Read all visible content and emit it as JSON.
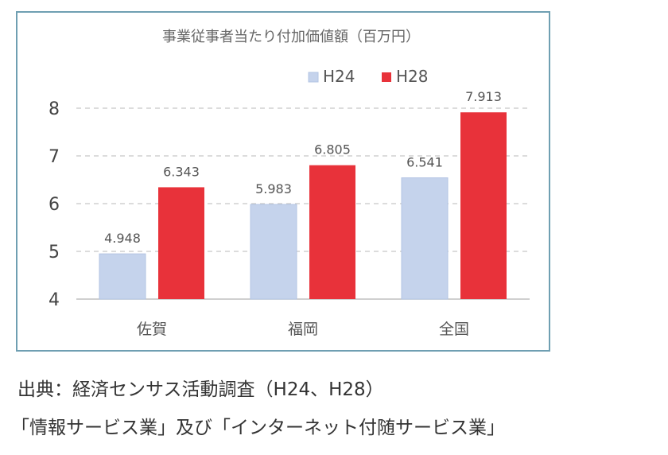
{
  "chart_data": {
    "type": "bar",
    "title": "事業従事者当たり付加価値額（百万円）",
    "categories": [
      "佐賀",
      "福岡",
      "全国"
    ],
    "series": [
      {
        "name": "H24",
        "values": [
          4.948,
          5.983,
          6.541
        ],
        "labels": [
          "4.948",
          "5.983",
          "6.541"
        ],
        "color": "#c5d3ec"
      },
      {
        "name": "H28",
        "values": [
          6.343,
          6.805,
          7.913
        ],
        "labels": [
          "6.343",
          "6.805",
          "7.913"
        ],
        "color": "#e8323a"
      }
    ],
    "ylim": [
      4,
      8
    ],
    "yticks": [
      4,
      5,
      6,
      7,
      8
    ],
    "ytick_labels": [
      "4",
      "5",
      "6",
      "7",
      "8"
    ],
    "grid": true,
    "legend_position": "top-right"
  },
  "caption": {
    "source": "出典：経済センサス活動調査（H24、H28）",
    "industries": "「情報サービス業」及び「インターネット付随サービス業」"
  }
}
